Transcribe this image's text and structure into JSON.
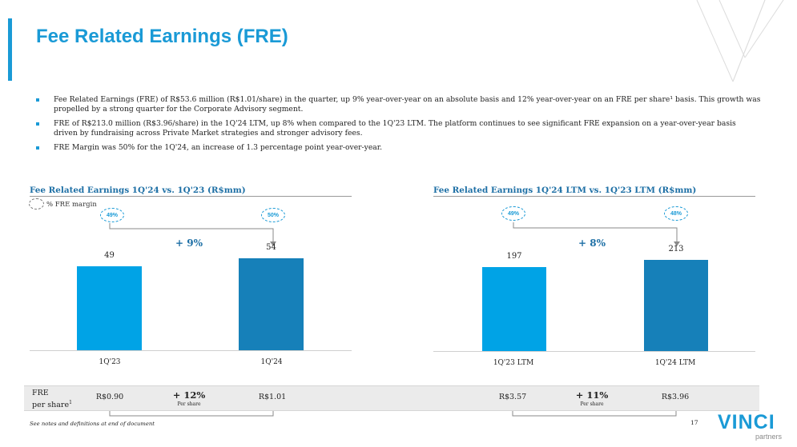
{
  "title": "Fee Related Earnings (FRE)",
  "bullets": [
    "Fee Related Earnings (FRE) of R$53.6 million (R$1.01/share) in the quarter, up 9% year-over-year on an absolute basis and 12% year-over-year on an FRE per share¹ basis. This growth was propelled by a strong quarter for the Corporate Advisory segment.",
    "FRE of R$213.0 million (R$3.96/share) in the 1Q'24 LTM, up 8% when compared to the 1Q'23 LTM. The platform continues to see significant FRE expansion on a year-over-year basis driven by fundraising across Private Market strategies and stronger advisory fees.",
    "FRE Margin was 50% for the 1Q'24, an increase of 1.3 percentage point year-over-year."
  ],
  "legend_label": "% FRE margin",
  "chart_data": [
    {
      "type": "bar",
      "title": "Fee Related Earnings 1Q'24 vs. 1Q'23 (R$mm)",
      "categories": [
        "1Q'23",
        "1Q'24"
      ],
      "values": [
        49,
        54
      ],
      "value_labels": [
        "49",
        "54"
      ],
      "margins": [
        "49%",
        "50%"
      ],
      "growth": "+ 9%",
      "colors": [
        "#00a3e6",
        "#1680b9"
      ],
      "ylim": [
        0,
        60
      ],
      "per_share": {
        "values": [
          "R$0.90",
          "R$1.01"
        ],
        "growth": "+ 12%",
        "growth_note": "Per share"
      }
    },
    {
      "type": "bar",
      "title": "Fee Related Earnings 1Q'24 LTM vs. 1Q'23 LTM (R$mm)",
      "categories": [
        "1Q'23 LTM",
        "1Q'24 LTM"
      ],
      "values": [
        197,
        213
      ],
      "value_labels": [
        "197",
        "213"
      ],
      "margins": [
        "49%",
        "48%"
      ],
      "growth": "+ 8%",
      "colors": [
        "#00a3e6",
        "#1680b9"
      ],
      "ylim": [
        0,
        240
      ],
      "per_share": {
        "values": [
          "R$3.57",
          "R$3.96"
        ],
        "growth": "+ 11%",
        "growth_note": "Per share"
      }
    }
  ],
  "per_share_label_line1": "FRE",
  "per_share_label_line2": "per share",
  "per_share_label_sup": "1",
  "footnote": "See notes and definitions at end of document",
  "page_number": "17",
  "logo_main": "VINCI",
  "logo_sub": "partners"
}
